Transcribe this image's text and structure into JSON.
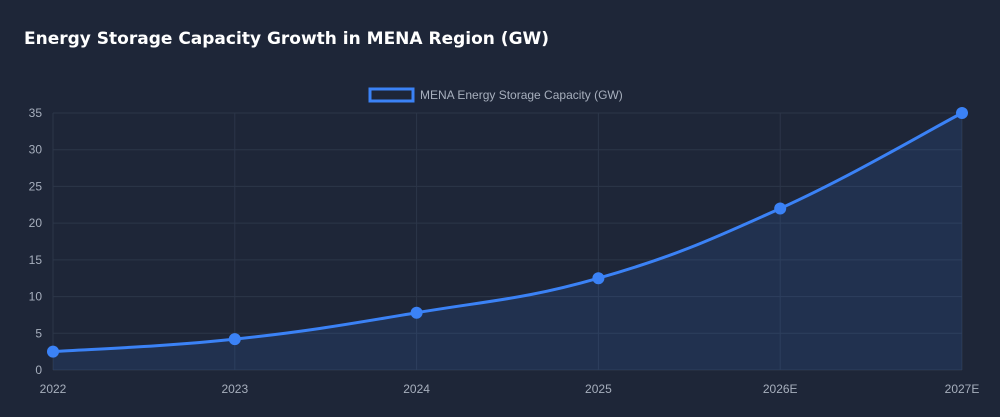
{
  "title": "Energy Storage Capacity Growth in MENA Region (GW)",
  "colors": {
    "background": "#1e2638",
    "line": "#3b82f6",
    "area": "rgba(59,130,246,0.12)",
    "grid": "#2c3649",
    "tick_text": "#a7afbd"
  },
  "chart_data": {
    "type": "area",
    "categories": [
      "2022",
      "2023",
      "2024",
      "2025",
      "2026E",
      "2027E"
    ],
    "series": [
      {
        "name": "MENA Energy Storage Capacity (GW)",
        "values": [
          2.5,
          4.2,
          7.8,
          12.5,
          22,
          35
        ]
      }
    ],
    "ylim": [
      0,
      35
    ],
    "yticks": [
      0,
      5,
      10,
      15,
      20,
      25,
      30,
      35
    ],
    "grid": true,
    "legend_position": "top-center"
  }
}
